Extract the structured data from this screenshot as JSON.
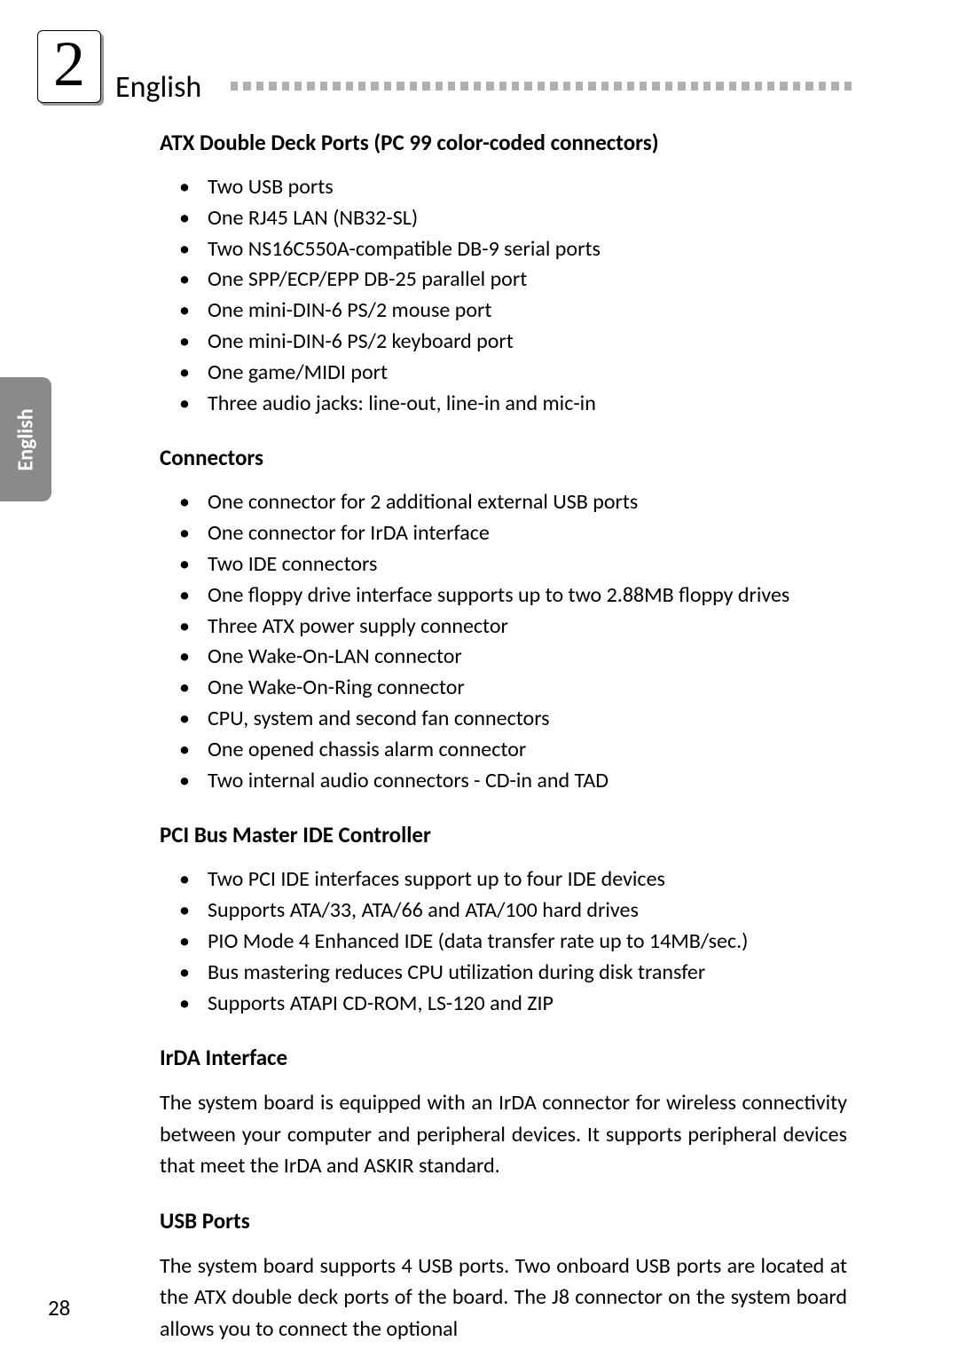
{
  "page": {
    "chapter_number": "2",
    "language_heading": "English",
    "side_tab": "English",
    "page_number": "28",
    "dot_count": 49,
    "colors": {
      "dot": "#b0b0b0",
      "tab_bg": "#8a8a8a",
      "tab_text": "#ffffff",
      "text": "#000000",
      "bg": "#ffffff"
    }
  },
  "sections": [
    {
      "title": "ATX Double Deck Ports (PC 99 color-coded connectors)",
      "items": [
        "Two USB ports",
        "One RJ45 LAN (NB32-SL)",
        "Two NS16C550A-compatible DB-9 serial ports",
        "One SPP/ECP/EPP DB-25 parallel port",
        "One mini-DIN-6 PS/2 mouse port",
        "One mini-DIN-6 PS/2 keyboard port",
        "One game/MIDI port",
        "Three audio jacks: line-out, line-in and mic-in"
      ]
    },
    {
      "title": "Connectors",
      "items": [
        "One connector for 2 additional external USB ports",
        "One connector for IrDA interface",
        "Two IDE connectors",
        "One floppy drive interface supports up to two 2.88MB floppy drives",
        "Three ATX power supply connector",
        "One Wake-On-LAN connector",
        "One Wake-On-Ring connector",
        "CPU, system and second fan connectors",
        "One opened chassis alarm connector",
        "Two internal audio connectors - CD-in and TAD"
      ],
      "justify_idx": [
        3
      ]
    },
    {
      "title": "PCI Bus Master IDE Controller",
      "items": [
        "Two PCI IDE interfaces support up to four IDE devices",
        "Supports ATA/33, ATA/66 and ATA/100 hard drives",
        "PIO Mode 4 Enhanced IDE (data transfer rate up to 14MB/sec.)",
        "Bus mastering reduces CPU utilization during disk transfer",
        "Supports ATAPI CD-ROM, LS-120 and ZIP"
      ]
    },
    {
      "title": "IrDA Interface",
      "paragraph": "The system board is equipped with an IrDA connector for wireless connectivity between your computer and peripheral devices. It supports peripheral devices that meet the IrDA and ASKIR standard."
    },
    {
      "title": "USB Ports",
      "paragraph": "The system board supports 4 USB ports. Two onboard USB ports are located at the ATX double deck ports of the board. The J8 connector on the system board allows you to connect the optional"
    }
  ]
}
